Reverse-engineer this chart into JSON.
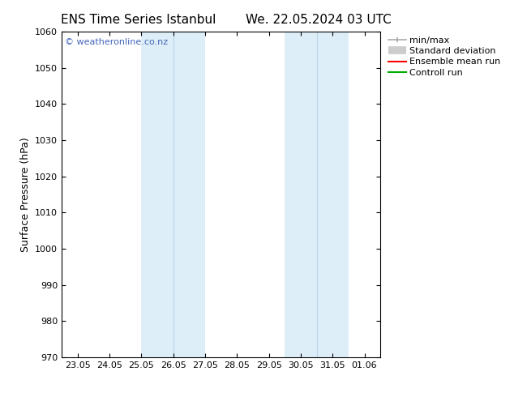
{
  "title_left": "ENS Time Series Istanbul",
  "title_right": "We. 22.05.2024 03 UTC",
  "ylabel": "Surface Pressure (hPa)",
  "ylim": [
    970,
    1060
  ],
  "yticks": [
    970,
    980,
    990,
    1000,
    1010,
    1020,
    1030,
    1040,
    1050,
    1060
  ],
  "xtick_labels": [
    "23.05",
    "24.05",
    "25.05",
    "26.05",
    "27.05",
    "28.05",
    "29.05",
    "30.05",
    "31.05",
    "01.06"
  ],
  "xtick_positions": [
    0,
    1,
    2,
    3,
    4,
    5,
    6,
    7,
    8,
    9
  ],
  "xlim": [
    -0.5,
    9.5
  ],
  "shaded_regions": [
    {
      "x_start": 2.0,
      "x_end": 4.0,
      "color": "#ddeef8"
    },
    {
      "x_start": 6.5,
      "x_end": 8.5,
      "color": "#ddeef8"
    }
  ],
  "shaded_inner_lines": [
    {
      "x": 3.0,
      "color": "#b8d4e8"
    },
    {
      "x": 7.5,
      "color": "#b8d4e8"
    }
  ],
  "background_color": "#ffffff",
  "watermark_text": "© weatheronline.co.nz",
  "watermark_color": "#4466bb",
  "legend_entries": [
    {
      "label": "min/max",
      "color": "#aaaaaa",
      "lw": 1.2
    },
    {
      "label": "Standard deviation",
      "color": "#cccccc",
      "lw": 7
    },
    {
      "label": "Ensemble mean run",
      "color": "#ff0000",
      "lw": 1.5
    },
    {
      "label": "Controll run",
      "color": "#00aa00",
      "lw": 1.5
    }
  ],
  "title_fontsize": 11,
  "tick_fontsize": 8,
  "ylabel_fontsize": 9,
  "watermark_fontsize": 8,
  "legend_fontsize": 8
}
